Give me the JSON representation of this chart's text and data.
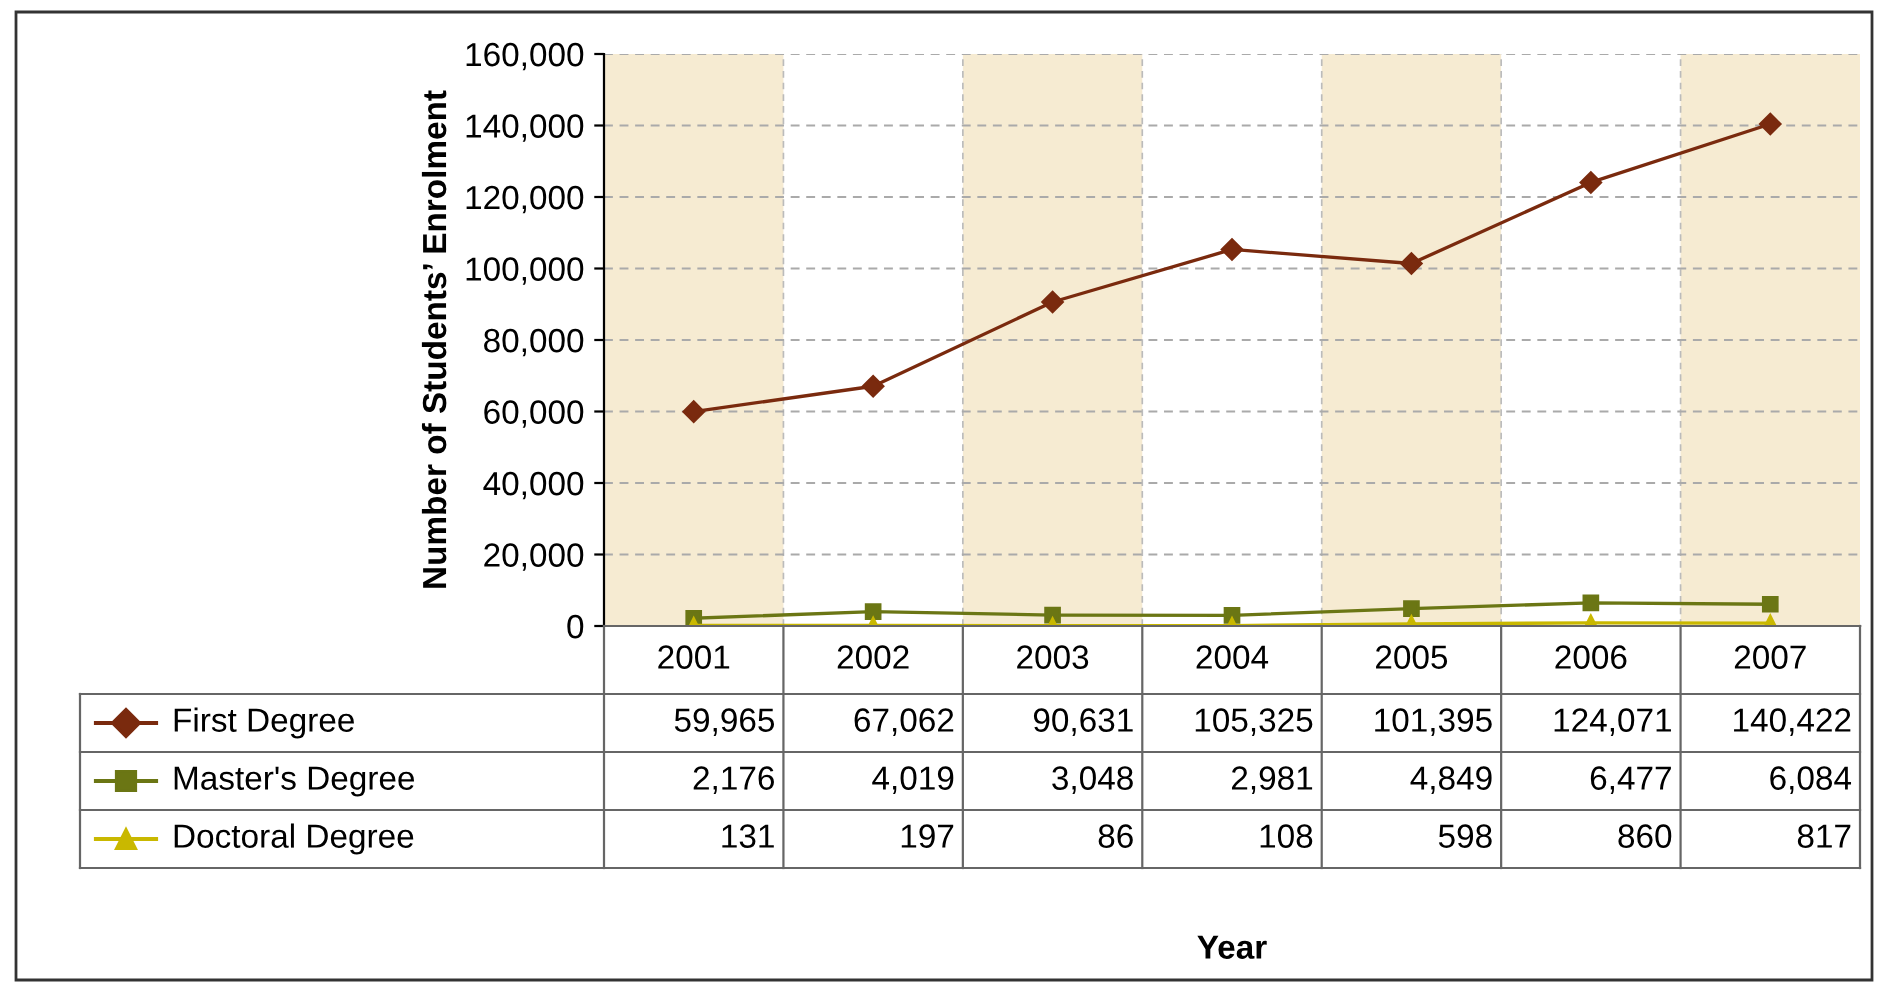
{
  "chart_data": {
    "type": "line",
    "annotations": [
      "Year"
    ],
    "ylabel": "Number of Students’ Enrolment",
    "categories": [
      "2001",
      "2002",
      "2003",
      "2004",
      "2005",
      "2006",
      "2007"
    ],
    "series": [
      {
        "name": "First Degree",
        "color": "#7a2a0e",
        "marker": "diamond",
        "values": [
          59965,
          67062,
          90631,
          105325,
          101395,
          124071,
          140422
        ],
        "value_labels": [
          "59,965",
          "67,062",
          "90,631",
          "105,325",
          "101,395",
          "124,071",
          "140,422"
        ]
      },
      {
        "name": "Master's Degree",
        "color": "#6b7614",
        "marker": "square",
        "values": [
          2176,
          4019,
          3048,
          2981,
          4849,
          6477,
          6084
        ],
        "value_labels": [
          "2,176",
          "4,019",
          "3,048",
          "2,981",
          "4,849",
          "6,477",
          "6,084"
        ]
      },
      {
        "name": "Doctoral Degree",
        "color": "#c9b800",
        "marker": "triangle",
        "values": [
          131,
          197,
          86,
          108,
          598,
          860,
          817
        ],
        "value_labels": [
          "131",
          "197",
          "86",
          "108",
          "598",
          "860",
          "817"
        ]
      }
    ],
    "ylim": [
      0,
      160000
    ],
    "yticks": [
      {
        "value": 0,
        "label": "0"
      },
      {
        "value": 20000,
        "label": "20,000"
      },
      {
        "value": 40000,
        "label": "40,000"
      },
      {
        "value": 60000,
        "label": "60,000"
      },
      {
        "value": 80000,
        "label": "80,000"
      },
      {
        "value": 100000,
        "label": "100,000"
      },
      {
        "value": 120000,
        "label": "120,000"
      },
      {
        "value": 140000,
        "label": "140,000"
      },
      {
        "value": 160000,
        "label": "160,000"
      }
    ],
    "bands": [
      {
        "axis": "x",
        "from": "2001",
        "to": "2001",
        "color": "#f6ebd2"
      },
      {
        "axis": "x",
        "from": "2003",
        "to": "2003",
        "color": "#f6ebd2"
      },
      {
        "axis": "x",
        "from": "2005",
        "to": "2005",
        "color": "#f6ebd2"
      },
      {
        "axis": "x",
        "from": "2007",
        "to": "2007",
        "color": "#f6ebd2"
      }
    ],
    "grid": "y",
    "legend": "bottom",
    "line_style": "solid"
  }
}
